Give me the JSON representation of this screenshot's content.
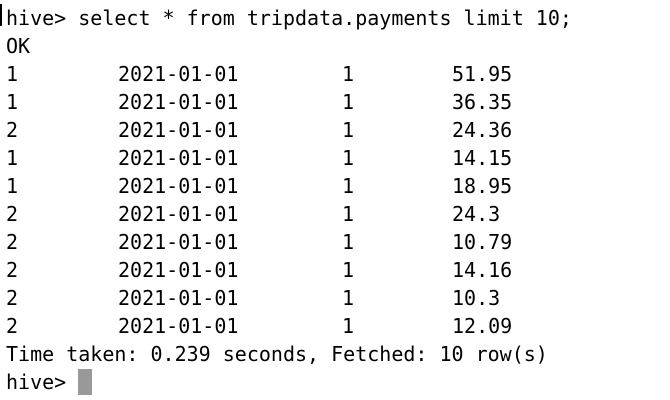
{
  "terminal": {
    "command_line": "hive> select * from tripdata.payments limit 10;",
    "status": "OK",
    "rows": [
      [
        "1",
        "2021-01-01",
        "1",
        "51.95"
      ],
      [
        "1",
        "2021-01-01",
        "1",
        "36.35"
      ],
      [
        "2",
        "2021-01-01",
        "1",
        "24.36"
      ],
      [
        "1",
        "2021-01-01",
        "1",
        "14.15"
      ],
      [
        "1",
        "2021-01-01",
        "1",
        "18.95"
      ],
      [
        "2",
        "2021-01-01",
        "1",
        "24.3"
      ],
      [
        "2",
        "2021-01-01",
        "1",
        "10.79"
      ],
      [
        "2",
        "2021-01-01",
        "1",
        "14.16"
      ],
      [
        "2",
        "2021-01-01",
        "1",
        "10.3"
      ],
      [
        "2",
        "2021-01-01",
        "1",
        "12.09"
      ]
    ],
    "summary": "Time taken: 0.239 seconds, Fetched: 10 row(s)",
    "prompt": "hive> ",
    "cursor_color": "#999999"
  }
}
